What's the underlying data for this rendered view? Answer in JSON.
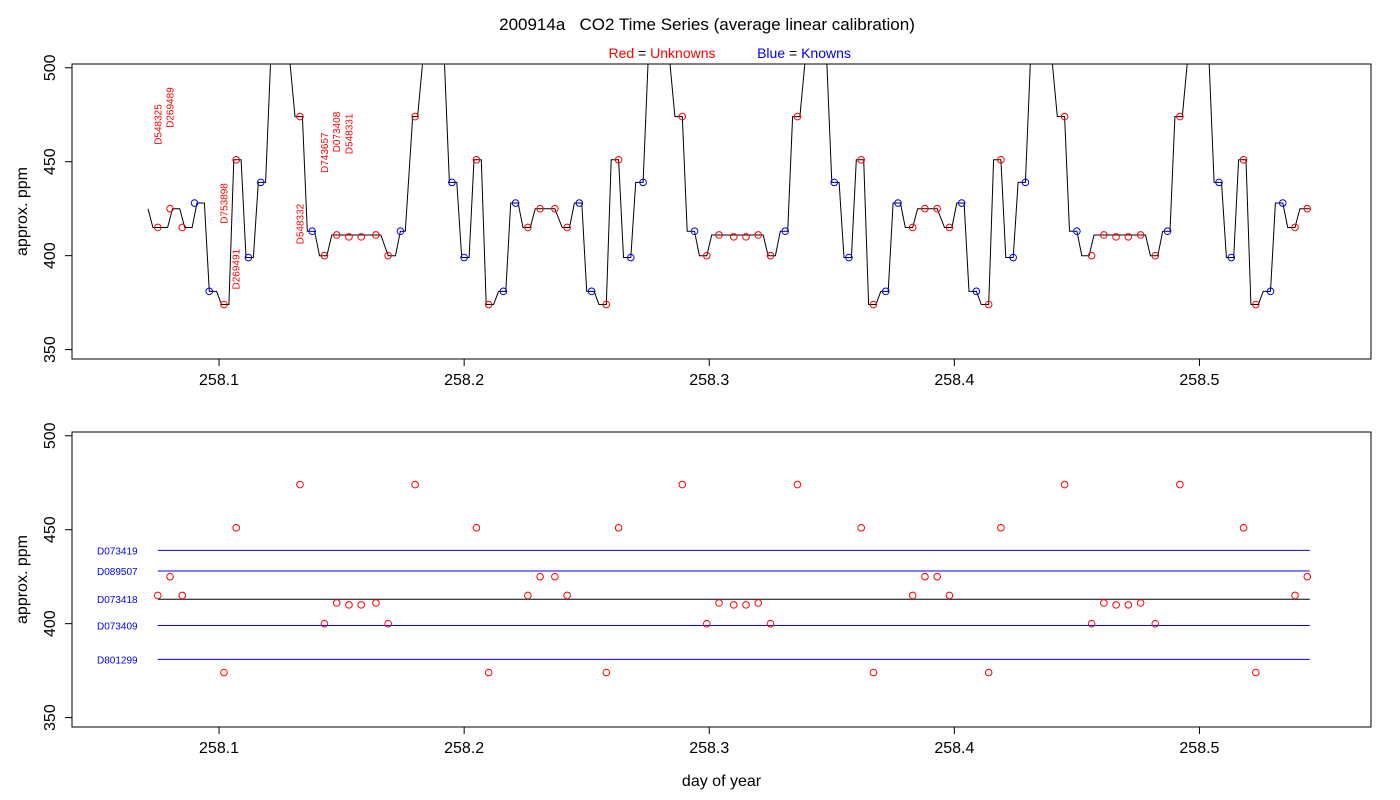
{
  "figure": {
    "title": "200914a   CO2 Time Series (average linear calibration)",
    "legend": {
      "red_label": "Red",
      "red_equals": " = ",
      "red_text": "Unknowns",
      "blue_label": "Blue",
      "blue_equals": " = ",
      "blue_text": "Knowns",
      "placement": "top-center"
    },
    "colors": {
      "unknown": "#ff0000",
      "known": "#0000ff",
      "trace": "#000000",
      "reference_line": "#0000ff"
    }
  },
  "chart_data": [
    {
      "type": "line",
      "panel": "top",
      "xlabel": "",
      "ylabel": "approx. ppm",
      "xlim": [
        258.04,
        258.57
      ],
      "ylim": [
        345,
        502
      ],
      "xticks": [
        258.1,
        258.2,
        258.3,
        258.4,
        258.5
      ],
      "xtick_labels": [
        "258.1",
        "258.2",
        "258.3",
        "258.4",
        "258.5"
      ],
      "yticks": [
        350,
        400,
        450,
        500
      ],
      "ytick_labels": [
        "350",
        "400",
        "450",
        "500"
      ],
      "grid": false,
      "trace": [
        [
          258.071,
          425
        ],
        [
          258.073,
          415
        ],
        [
          258.079,
          415
        ],
        [
          258.081,
          425
        ],
        [
          258.084,
          425
        ],
        [
          258.086,
          415
        ],
        [
          258.089,
          415
        ],
        [
          258.091,
          428
        ],
        [
          258.094,
          428
        ],
        [
          258.096,
          381
        ],
        [
          258.099,
          381
        ],
        [
          258.101,
          374
        ],
        [
          258.104,
          374
        ],
        [
          258.106,
          451
        ],
        [
          258.109,
          451
        ],
        [
          258.111,
          399
        ],
        [
          258.114,
          399
        ],
        [
          258.116,
          439
        ],
        [
          258.119,
          439
        ],
        [
          258.121,
          502
        ],
        [
          258.129,
          502
        ],
        [
          258.131,
          474
        ],
        [
          258.134,
          474
        ],
        [
          258.136,
          413
        ],
        [
          258.139,
          413
        ],
        [
          258.141,
          400
        ],
        [
          258.144,
          400
        ],
        [
          258.146,
          411
        ],
        [
          258.166,
          411
        ],
        [
          258.169,
          400
        ],
        [
          258.172,
          400
        ],
        [
          258.174,
          413
        ],
        [
          258.176,
          413
        ],
        [
          258.179,
          474
        ],
        [
          258.181,
          474
        ],
        [
          258.183,
          502
        ],
        [
          258.192,
          502
        ],
        [
          258.194,
          439
        ],
        [
          258.197,
          439
        ],
        [
          258.199,
          399
        ],
        [
          258.202,
          399
        ],
        [
          258.204,
          451
        ],
        [
          258.207,
          451
        ],
        [
          258.209,
          374
        ],
        [
          258.212,
          374
        ],
        [
          258.214,
          381
        ],
        [
          258.217,
          381
        ],
        [
          258.219,
          428
        ],
        [
          258.222,
          428
        ],
        [
          258.224,
          415
        ],
        [
          258.227,
          415
        ],
        [
          258.229,
          425
        ],
        [
          258.237,
          425
        ],
        [
          258.24,
          415
        ],
        [
          258.243,
          415
        ],
        [
          258.245,
          428
        ],
        [
          258.248,
          428
        ],
        [
          258.25,
          381
        ],
        [
          258.253,
          381
        ],
        [
          258.255,
          374
        ],
        [
          258.258,
          374
        ],
        [
          258.26,
          451
        ],
        [
          258.263,
          451
        ],
        [
          258.265,
          399
        ],
        [
          258.268,
          399
        ],
        [
          258.27,
          439
        ],
        [
          258.273,
          439
        ],
        [
          258.275,
          502
        ],
        [
          258.284,
          502
        ],
        [
          258.286,
          474
        ],
        [
          258.289,
          474
        ],
        [
          258.291,
          413
        ],
        [
          258.294,
          413
        ],
        [
          258.296,
          400
        ],
        [
          258.299,
          400
        ],
        [
          258.301,
          411
        ],
        [
          258.322,
          411
        ],
        [
          258.324,
          400
        ],
        [
          258.327,
          400
        ],
        [
          258.329,
          413
        ],
        [
          258.332,
          413
        ],
        [
          258.334,
          474
        ],
        [
          258.337,
          474
        ],
        [
          258.339,
          502
        ],
        [
          258.348,
          502
        ],
        [
          258.35,
          439
        ],
        [
          258.353,
          439
        ],
        [
          258.355,
          399
        ],
        [
          258.358,
          399
        ],
        [
          258.36,
          451
        ],
        [
          258.363,
          451
        ],
        [
          258.365,
          374
        ],
        [
          258.368,
          374
        ],
        [
          258.37,
          381
        ],
        [
          258.373,
          381
        ],
        [
          258.375,
          428
        ],
        [
          258.378,
          428
        ],
        [
          258.38,
          415
        ],
        [
          258.383,
          415
        ],
        [
          258.385,
          425
        ],
        [
          258.393,
          425
        ],
        [
          258.396,
          415
        ],
        [
          258.399,
          415
        ],
        [
          258.401,
          428
        ],
        [
          258.404,
          428
        ],
        [
          258.406,
          381
        ],
        [
          258.409,
          381
        ],
        [
          258.411,
          374
        ],
        [
          258.414,
          374
        ],
        [
          258.416,
          451
        ],
        [
          258.419,
          451
        ],
        [
          258.421,
          399
        ],
        [
          258.424,
          399
        ],
        [
          258.426,
          439
        ],
        [
          258.429,
          439
        ],
        [
          258.431,
          502
        ],
        [
          258.44,
          502
        ],
        [
          258.442,
          474
        ],
        [
          258.445,
          474
        ],
        [
          258.447,
          413
        ],
        [
          258.45,
          413
        ],
        [
          258.452,
          400
        ],
        [
          258.455,
          400
        ],
        [
          258.457,
          411
        ],
        [
          258.478,
          411
        ],
        [
          258.48,
          400
        ],
        [
          258.483,
          400
        ],
        [
          258.485,
          413
        ],
        [
          258.488,
          413
        ],
        [
          258.49,
          474
        ],
        [
          258.493,
          474
        ],
        [
          258.495,
          502
        ],
        [
          258.504,
          502
        ],
        [
          258.506,
          439
        ],
        [
          258.509,
          439
        ],
        [
          258.511,
          399
        ],
        [
          258.514,
          399
        ],
        [
          258.516,
          451
        ],
        [
          258.519,
          451
        ],
        [
          258.521,
          374
        ],
        [
          258.524,
          374
        ],
        [
          258.526,
          381
        ],
        [
          258.529,
          381
        ],
        [
          258.531,
          428
        ],
        [
          258.534,
          428
        ],
        [
          258.536,
          415
        ],
        [
          258.539,
          415
        ],
        [
          258.541,
          425
        ],
        [
          258.545,
          425
        ]
      ],
      "unknown_points": [
        [
          258.075,
          415
        ],
        [
          258.08,
          425
        ],
        [
          258.085,
          415
        ],
        [
          258.102,
          374
        ],
        [
          258.107,
          451
        ],
        [
          258.133,
          474
        ],
        [
          258.143,
          400
        ],
        [
          258.148,
          411
        ],
        [
          258.153,
          410
        ],
        [
          258.158,
          410
        ],
        [
          258.164,
          411
        ],
        [
          258.169,
          400
        ],
        [
          258.18,
          474
        ],
        [
          258.205,
          451
        ],
        [
          258.21,
          374
        ],
        [
          258.226,
          415
        ],
        [
          258.231,
          425
        ],
        [
          258.237,
          425
        ],
        [
          258.242,
          415
        ],
        [
          258.258,
          374
        ],
        [
          258.263,
          451
        ],
        [
          258.289,
          474
        ],
        [
          258.299,
          400
        ],
        [
          258.304,
          411
        ],
        [
          258.31,
          410
        ],
        [
          258.315,
          410
        ],
        [
          258.32,
          411
        ],
        [
          258.325,
          400
        ],
        [
          258.336,
          474
        ],
        [
          258.362,
          451
        ],
        [
          258.367,
          374
        ],
        [
          258.383,
          415
        ],
        [
          258.388,
          425
        ],
        [
          258.393,
          425
        ],
        [
          258.398,
          415
        ],
        [
          258.414,
          374
        ],
        [
          258.419,
          451
        ],
        [
          258.445,
          474
        ],
        [
          258.456,
          400
        ],
        [
          258.461,
          411
        ],
        [
          258.466,
          410
        ],
        [
          258.471,
          410
        ],
        [
          258.476,
          411
        ],
        [
          258.482,
          400
        ],
        [
          258.492,
          474
        ],
        [
          258.518,
          451
        ],
        [
          258.523,
          374
        ],
        [
          258.539,
          415
        ],
        [
          258.544,
          425
        ]
      ],
      "known_points": [
        [
          258.09,
          428
        ],
        [
          258.096,
          381
        ],
        [
          258.112,
          399
        ],
        [
          258.117,
          439
        ],
        [
          258.138,
          413
        ],
        [
          258.174,
          413
        ],
        [
          258.195,
          439
        ],
        [
          258.2,
          399
        ],
        [
          258.216,
          381
        ],
        [
          258.221,
          428
        ],
        [
          258.247,
          428
        ],
        [
          258.252,
          381
        ],
        [
          258.268,
          399
        ],
        [
          258.273,
          439
        ],
        [
          258.294,
          413
        ],
        [
          258.331,
          413
        ],
        [
          258.351,
          439
        ],
        [
          258.357,
          399
        ],
        [
          258.372,
          381
        ],
        [
          258.377,
          428
        ],
        [
          258.403,
          428
        ],
        [
          258.409,
          381
        ],
        [
          258.424,
          399
        ],
        [
          258.429,
          439
        ],
        [
          258.45,
          413
        ],
        [
          258.487,
          413
        ],
        [
          258.508,
          439
        ],
        [
          258.513,
          399
        ],
        [
          258.529,
          381
        ],
        [
          258.534,
          428
        ]
      ],
      "annotations": [
        {
          "text": "D548325",
          "x": 258.075,
          "y": 459
        },
        {
          "text": "D269489",
          "x": 258.08,
          "y": 468
        },
        {
          "text": "D753898",
          "x": 258.102,
          "y": 417
        },
        {
          "text": "D269491",
          "x": 258.107,
          "y": 382
        },
        {
          "text": "D548332",
          "x": 258.133,
          "y": 406
        },
        {
          "text": "D743657",
          "x": 258.143,
          "y": 444
        },
        {
          "text": "D073408",
          "x": 258.148,
          "y": 455
        },
        {
          "text": "D548331",
          "x": 258.153,
          "y": 454
        }
      ]
    },
    {
      "type": "scatter",
      "panel": "bottom",
      "xlabel": "day of year",
      "ylabel": "approx. ppm",
      "xlim": [
        258.04,
        258.57
      ],
      "ylim": [
        345,
        502
      ],
      "xticks": [
        258.1,
        258.2,
        258.3,
        258.4,
        258.5
      ],
      "xtick_labels": [
        "258.1",
        "258.2",
        "258.3",
        "258.4",
        "258.5"
      ],
      "yticks": [
        350,
        400,
        450,
        500
      ],
      "ytick_labels": [
        "350",
        "400",
        "450",
        "500"
      ],
      "grid": false,
      "unknown_points": [
        [
          258.075,
          415
        ],
        [
          258.08,
          425
        ],
        [
          258.085,
          415
        ],
        [
          258.102,
          374
        ],
        [
          258.107,
          451
        ],
        [
          258.133,
          474
        ],
        [
          258.143,
          400
        ],
        [
          258.148,
          411
        ],
        [
          258.153,
          410
        ],
        [
          258.158,
          410
        ],
        [
          258.164,
          411
        ],
        [
          258.169,
          400
        ],
        [
          258.18,
          474
        ],
        [
          258.205,
          451
        ],
        [
          258.21,
          374
        ],
        [
          258.226,
          415
        ],
        [
          258.231,
          425
        ],
        [
          258.237,
          425
        ],
        [
          258.242,
          415
        ],
        [
          258.258,
          374
        ],
        [
          258.263,
          451
        ],
        [
          258.289,
          474
        ],
        [
          258.299,
          400
        ],
        [
          258.304,
          411
        ],
        [
          258.31,
          410
        ],
        [
          258.315,
          410
        ],
        [
          258.32,
          411
        ],
        [
          258.325,
          400
        ],
        [
          258.336,
          474
        ],
        [
          258.362,
          451
        ],
        [
          258.367,
          374
        ],
        [
          258.383,
          415
        ],
        [
          258.388,
          425
        ],
        [
          258.393,
          425
        ],
        [
          258.398,
          415
        ],
        [
          258.414,
          374
        ],
        [
          258.419,
          451
        ],
        [
          258.445,
          474
        ],
        [
          258.456,
          400
        ],
        [
          258.461,
          411
        ],
        [
          258.466,
          410
        ],
        [
          258.471,
          410
        ],
        [
          258.476,
          411
        ],
        [
          258.482,
          400
        ],
        [
          258.492,
          474
        ],
        [
          258.518,
          451
        ],
        [
          258.523,
          374
        ],
        [
          258.539,
          415
        ],
        [
          258.544,
          425
        ]
      ],
      "reference_lines": [
        {
          "label": "D073419",
          "y0": 439,
          "y1": 439,
          "color": "#0000ff"
        },
        {
          "label": "D089507",
          "y0": 428,
          "y1": 428,
          "color": "#0000ff"
        },
        {
          "label": "D073418",
          "y0": 413,
          "y1": 413,
          "color": "#000000"
        },
        {
          "label": "D073409",
          "y0": 399,
          "y1": 399,
          "color": "#0000ff"
        },
        {
          "label": "D801299",
          "y0": 381,
          "y1": 381,
          "color": "#0000ff"
        }
      ],
      "line_xrange": [
        258.075,
        258.545
      ]
    }
  ]
}
